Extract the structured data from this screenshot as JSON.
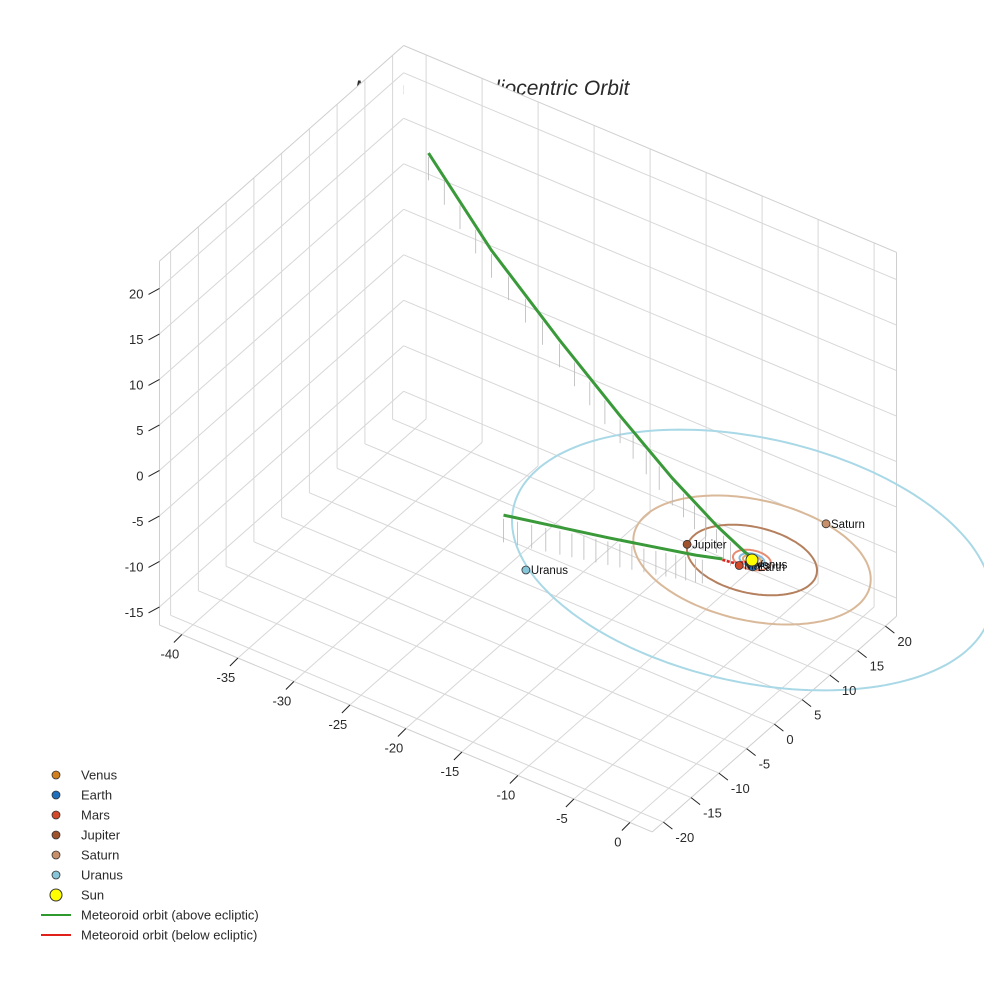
{
  "chart_data": {
    "type": "scatter3d",
    "title": "Meteoroid's Heliocentric Orbit",
    "axes": {
      "x": {
        "ticks": [
          -40,
          -35,
          -30,
          -25,
          -20,
          -15,
          -10,
          -5,
          0
        ],
        "range": [
          -42,
          2
        ]
      },
      "y": {
        "ticks": [
          -20,
          -15,
          -10,
          -5,
          0,
          5,
          10,
          15,
          20
        ],
        "range": [
          -22,
          22
        ]
      },
      "z": {
        "ticks": [
          -15,
          -10,
          -5,
          0,
          5,
          10,
          15,
          20
        ],
        "range": [
          -17,
          23
        ]
      },
      "grid": true
    },
    "planets": [
      {
        "name": "Venus",
        "color": "#d2801e",
        "x": 0.2,
        "y": -0.7,
        "z": 0,
        "orbit_radius": 0.72,
        "label": "Venus"
      },
      {
        "name": "Earth",
        "color": "#1f6fbf",
        "x": 0.5,
        "y": -0.9,
        "z": 0,
        "orbit_radius": 1.0,
        "label": "Earth"
      },
      {
        "name": "Mars",
        "color": "#d24a2a",
        "x": -0.4,
        "y": -1.5,
        "z": 0,
        "orbit_radius": 1.52,
        "label": "Mars"
      },
      {
        "name": "Jupiter",
        "color": "#a0522d",
        "x": -5.0,
        "y": -1.6,
        "z": 0,
        "orbit_radius": 5.2,
        "label": "Jupiter"
      },
      {
        "name": "Saturn",
        "color": "#c8906a",
        "x": 2.0,
        "y": 9.3,
        "z": 0,
        "orbit_radius": 9.5,
        "label": "Saturn"
      },
      {
        "name": "Uranus",
        "color": "#87c5d8",
        "x": -13.0,
        "y": -14.5,
        "z": 0,
        "orbit_radius": 19.2,
        "label": "Uranus"
      }
    ],
    "sun": {
      "name": "Sun",
      "color": "#ffff00",
      "x": 0,
      "y": 0,
      "z": 0
    },
    "orbit_colors": {
      "Venus": "#e0a86a",
      "Earth": "#87bde0",
      "Mars": "#e68c73",
      "Jupiter": "#b5805e",
      "Saturn": "#d9b999",
      "Uranus": "#a9d8e6"
    },
    "meteoroid": {
      "above_color": "#3a9a3a",
      "below_color": "#e0201a",
      "above_branch_1": [
        [
          -37.8,
          18,
          15.5
        ],
        [
          -30,
          13.6,
          11.2
        ],
        [
          -22,
          9.7,
          7.6
        ],
        [
          -15,
          6.5,
          4.6
        ],
        [
          -9,
          3.8,
          2.3
        ],
        [
          -4,
          1.7,
          0.8
        ],
        [
          -1,
          0.6,
          0.1
        ],
        [
          0.3,
          0.1,
          0
        ]
      ],
      "above_branch_2": [
        [
          -15.5,
          -13.5,
          4.2
        ],
        [
          -12,
          -10.4,
          3.0
        ],
        [
          -9,
          -7.8,
          2.0
        ],
        [
          -6,
          -5.2,
          1.1
        ],
        [
          -3.5,
          -3.1,
          0.4
        ],
        [
          -1.8,
          -1.7,
          0.1
        ]
      ],
      "below_branch": [
        [
          -1.8,
          -1.7,
          0
        ],
        [
          -1,
          -1.2,
          -0.2
        ],
        [
          -0.3,
          -0.5,
          -0.1
        ],
        [
          0.3,
          0.1,
          0
        ]
      ]
    },
    "legend": {
      "position": "bottom-left",
      "entries": [
        {
          "label": "Venus",
          "kind": "marker",
          "color": "#d2801e"
        },
        {
          "label": "Earth",
          "kind": "marker",
          "color": "#1f6fbf"
        },
        {
          "label": "Mars",
          "kind": "marker",
          "color": "#d24a2a"
        },
        {
          "label": "Jupiter",
          "kind": "marker",
          "color": "#a0522d"
        },
        {
          "label": "Saturn",
          "kind": "marker",
          "color": "#c8906a"
        },
        {
          "label": "Uranus",
          "kind": "marker",
          "color": "#87c5d8"
        },
        {
          "label": "Sun",
          "kind": "sun",
          "color": "#ffff00"
        },
        {
          "label": "Meteoroid orbit (above ecliptic)",
          "kind": "line",
          "color": "#2e9a2e"
        },
        {
          "label": "Meteoroid orbit (below ecliptic)",
          "kind": "line",
          "color": "#e0201a"
        }
      ]
    }
  }
}
